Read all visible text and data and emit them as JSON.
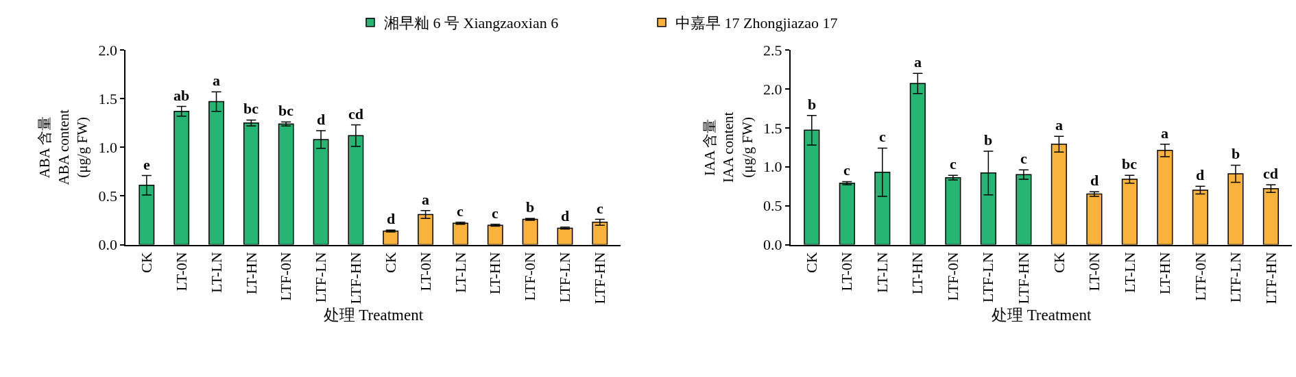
{
  "chart_data": [
    {
      "type": "bar",
      "ylabel": "ABA 含量\nABA content\n(μg/g FW)",
      "xlabel": "处理 Treatment",
      "categories": [
        "CK",
        "LT-0N",
        "LT-LN",
        "LT-HN",
        "LTF-0N",
        "LTF-LN",
        "LTF-HN",
        "CK",
        "LT-0N",
        "LT-LN",
        "LT-HN",
        "LTF-0N",
        "LTF-LN",
        "LTF-HN"
      ],
      "ylim": [
        0,
        2.0
      ],
      "yticks": [
        {
          "value": 0,
          "label": "0.0"
        },
        {
          "value": 0.5,
          "label": "0.5"
        },
        {
          "value": 1,
          "label": "1.0"
        },
        {
          "value": 1.5,
          "label": "1.5"
        },
        {
          "value": 2,
          "label": "2.0"
        }
      ],
      "legend": "top",
      "series": [
        {
          "name": "湘早籼 6 号 Xiangzaoxian 6",
          "color": "#27b574",
          "values": [
            0.61,
            1.37,
            1.47,
            1.25,
            1.24,
            1.08,
            1.12,
            null,
            null,
            null,
            null,
            null,
            null,
            null
          ],
          "errors": [
            0.1,
            0.05,
            0.1,
            0.03,
            0.02,
            0.09,
            0.11,
            null,
            null,
            null,
            null,
            null,
            null,
            null
          ],
          "value_labels": [
            "e",
            "ab",
            "a",
            "bc",
            "bc",
            "d",
            "cd",
            null,
            null,
            null,
            null,
            null,
            null,
            null
          ]
        },
        {
          "name": "中嘉早 17 Zhongjiazao 17",
          "color": "#f9b33c",
          "values": [
            null,
            null,
            null,
            null,
            null,
            null,
            null,
            0.14,
            0.31,
            0.22,
            0.2,
            0.26,
            0.17,
            0.23
          ],
          "errors": [
            null,
            null,
            null,
            null,
            null,
            null,
            null,
            0.01,
            0.04,
            0.01,
            0.01,
            0.01,
            0.01,
            0.03
          ],
          "value_labels": [
            null,
            null,
            null,
            null,
            null,
            null,
            null,
            "d",
            "a",
            "c",
            "c",
            "b",
            "d",
            "c"
          ]
        }
      ]
    },
    {
      "type": "bar",
      "ylabel": "IAA 含量\nIAA content\n(μg/g FW)",
      "xlabel": "处理 Treatment",
      "categories": [
        "CK",
        "LT-0N",
        "LT-LN",
        "LT-HN",
        "LTF-0N",
        "LTF-LN",
        "LTF-HN",
        "CK",
        "LT-0N",
        "LT-LN",
        "LT-HN",
        "LTF-0N",
        "LTF-LN",
        "LTF-HN"
      ],
      "ylim": [
        0,
        2.5
      ],
      "yticks": [
        {
          "value": 0,
          "label": "0.0"
        },
        {
          "value": 0.5,
          "label": "0.5"
        },
        {
          "value": 1,
          "label": "1.0"
        },
        {
          "value": 1.5,
          "label": "1.5"
        },
        {
          "value": 2,
          "label": "2.0"
        },
        {
          "value": 2.5,
          "label": "2.5"
        }
      ],
      "series": [
        {
          "color": "#27b574",
          "values": [
            1.47,
            0.79,
            0.93,
            2.07,
            0.86,
            0.92,
            0.9,
            null,
            null,
            null,
            null,
            null,
            null,
            null
          ],
          "errors": [
            0.19,
            0.02,
            0.31,
            0.13,
            0.03,
            0.28,
            0.06,
            null,
            null,
            null,
            null,
            null,
            null,
            null
          ],
          "value_labels": [
            "b",
            "c",
            "c",
            "a",
            "c",
            "b",
            "c",
            null,
            null,
            null,
            null,
            null,
            null,
            null
          ]
        },
        {
          "color": "#f9b33c",
          "values": [
            null,
            null,
            null,
            null,
            null,
            null,
            null,
            1.29,
            0.65,
            0.84,
            1.21,
            0.7,
            0.91,
            0.72
          ],
          "errors": [
            null,
            null,
            null,
            null,
            null,
            null,
            null,
            0.1,
            0.03,
            0.05,
            0.08,
            0.05,
            0.11,
            0.05
          ],
          "value_labels": [
            null,
            null,
            null,
            null,
            null,
            null,
            null,
            "a",
            "d",
            "bc",
            "a",
            "d",
            "b",
            "cd"
          ]
        }
      ]
    }
  ]
}
